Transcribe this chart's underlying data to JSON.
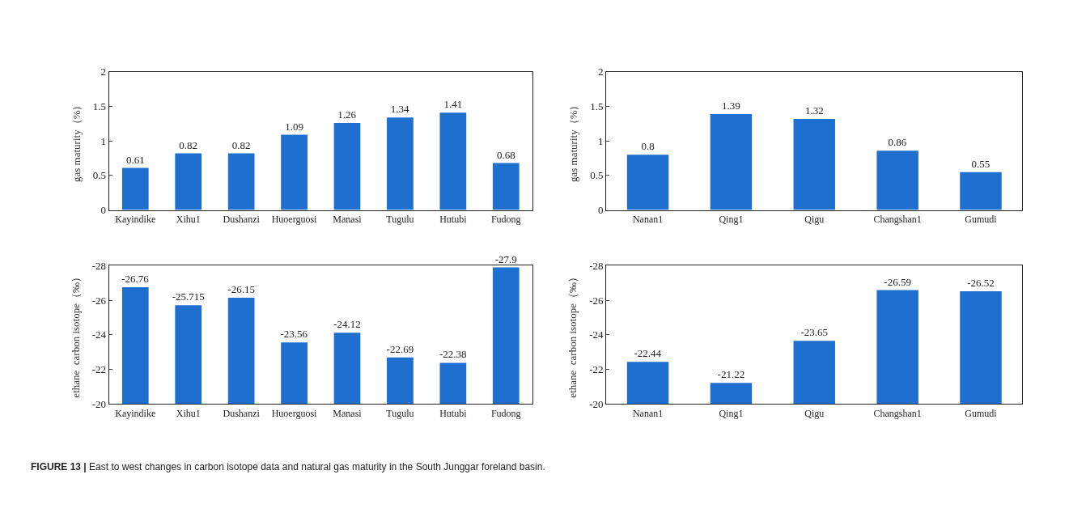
{
  "chart_data": [
    {
      "type": "bar",
      "ylabel": "gas maturity（%）",
      "categories": [
        "Kayindike",
        "Xihu1",
        "Dushanzi",
        "Huoerguosi",
        "Manasi",
        "Tugulu",
        "Hutubi",
        "Fudong"
      ],
      "values": [
        0.61,
        0.82,
        0.82,
        1.09,
        1.26,
        1.34,
        1.41,
        0.68
      ],
      "color": "#1f6fd1",
      "ylim": [
        0,
        2
      ],
      "yticks": [
        0,
        0.5,
        1,
        1.5,
        2
      ],
      "data_labels": true
    },
    {
      "type": "bar",
      "ylabel": "gas maturity（%）",
      "categories": [
        "Nanan1",
        "Qing1",
        "Qigu",
        "Changshan1",
        "Gumudi"
      ],
      "values": [
        0.8,
        1.39,
        1.32,
        0.86,
        0.55
      ],
      "color": "#1f6fd1",
      "ylim": [
        0,
        2
      ],
      "yticks": [
        0,
        0.5,
        1,
        1.5,
        2
      ],
      "data_labels": true
    },
    {
      "type": "bar",
      "ylabel": "ethane  carbon isotope（‰）",
      "categories": [
        "Kayindike",
        "Xihu1",
        "Dushanzi",
        "Huoerguosi",
        "Manasi",
        "Tugulu",
        "Hutubi",
        "Fudong"
      ],
      "values": [
        -26.76,
        -25.715,
        -26.15,
        -23.56,
        -24.12,
        -22.69,
        -22.38,
        -27.9
      ],
      "color": "#1f6fd1",
      "ylim": [
        -20,
        -28
      ],
      "yticks": [
        -20,
        -22,
        -24,
        -26,
        -28
      ],
      "data_labels": true
    },
    {
      "type": "bar",
      "ylabel": "ethane  carbon isotope（‰）",
      "categories": [
        "Nanan1",
        "Qing1",
        "Qigu",
        "Changshan1",
        "Gumudi"
      ],
      "values": [
        -22.44,
        -21.22,
        -23.65,
        -26.59,
        -26.52
      ],
      "color": "#1f6fd1",
      "ylim": [
        -20,
        -28
      ],
      "yticks": [
        -20,
        -22,
        -24,
        -26,
        -28
      ],
      "data_labels": true,
      "annotations": [
        "FIGURE 13 | East to west changes in carbon isotope data and natural gas maturity in the South Junggar foreland basin."
      ]
    }
  ]
}
